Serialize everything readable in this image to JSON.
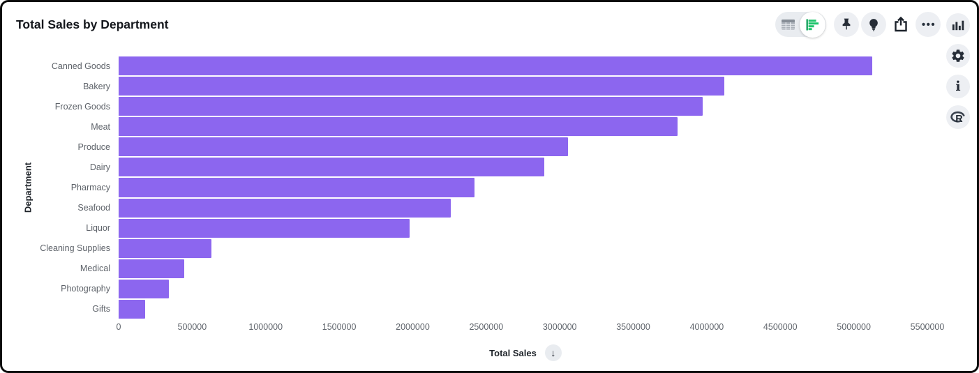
{
  "header": {
    "title": "Total Sales by Department"
  },
  "toolbar": {
    "view_toggle": {
      "options": [
        {
          "icon": "table-view-icon",
          "selected": false
        },
        {
          "icon": "bar-chart-view-icon",
          "selected": true
        }
      ]
    },
    "buttons": [
      {
        "icon": "pin-icon"
      },
      {
        "icon": "lightbulb-icon"
      },
      {
        "icon": "share-icon"
      },
      {
        "icon": "ellipsis-icon"
      }
    ]
  },
  "right_rail": {
    "buttons": [
      {
        "icon": "column-chart-icon"
      },
      {
        "icon": "gear-icon"
      },
      {
        "icon": "info-icon"
      },
      {
        "icon": "r-logo-icon"
      }
    ]
  },
  "icons": {
    "ellipsis_glyph": "•••",
    "info_glyph": "i",
    "r_glyph": "R",
    "sort_glyph": "↓"
  },
  "colors": {
    "bar_purple": "#8c66ef",
    "icon_green": "#1fc46c",
    "icon_dark": "#262d37"
  },
  "chart_data": {
    "type": "bar",
    "orientation": "horizontal",
    "title": "Total Sales by Department",
    "xlabel": "Total Sales",
    "ylabel": "Department",
    "sort": "descending",
    "grid": "off",
    "legend": "none",
    "categories": [
      "Canned Goods",
      "Bakery",
      "Frozen Goods",
      "Meat",
      "Produce",
      "Dairy",
      "Pharmacy",
      "Seafood",
      "Liquor",
      "Cleaning Supplies",
      "Medical",
      "Photography",
      "Gifts"
    ],
    "values": [
      5125000,
      4120000,
      3970000,
      3800000,
      3055000,
      2895000,
      2420000,
      2260000,
      1980000,
      630000,
      445000,
      340000,
      180000
    ],
    "xlim": [
      0,
      5500000
    ],
    "x_ticks": [
      0,
      500000,
      1000000,
      1500000,
      2000000,
      2500000,
      3000000,
      3500000,
      4000000,
      4500000,
      5000000,
      5500000
    ],
    "bar_color": "#8c66ef"
  }
}
